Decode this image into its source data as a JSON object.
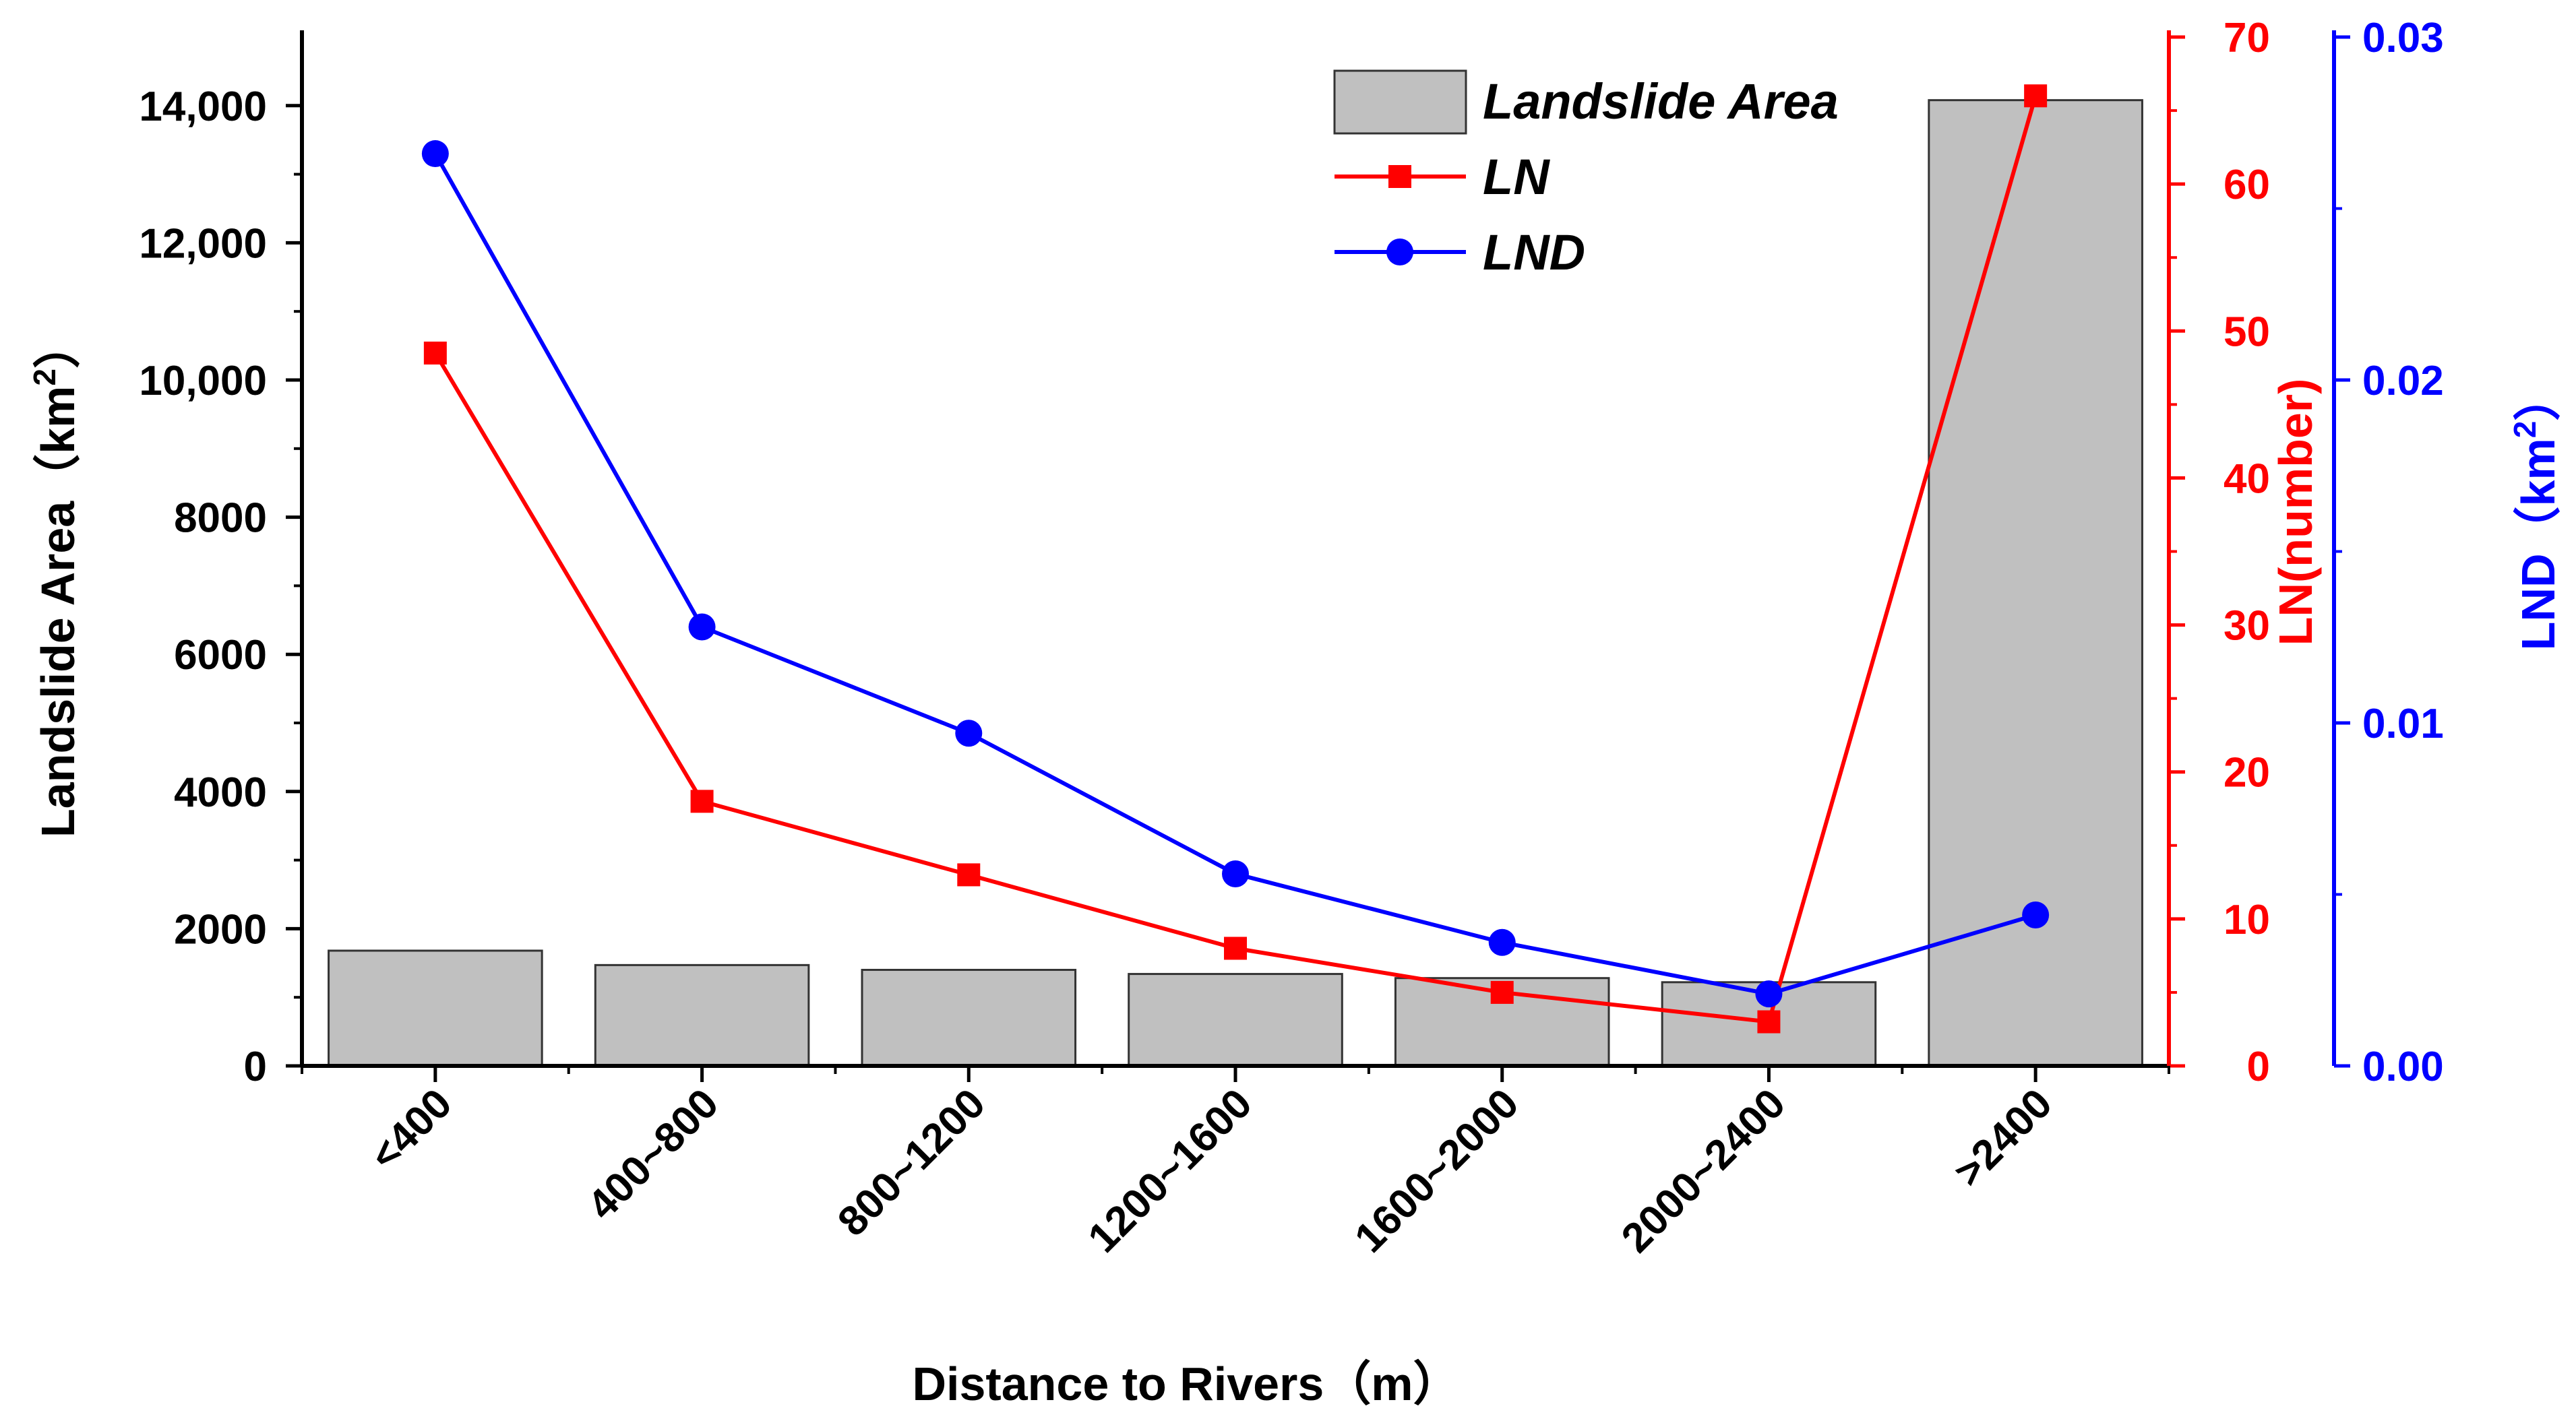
{
  "chart_data": {
    "type": "bar",
    "categories": [
      "<400",
      "400~800",
      "800~1200",
      "1200~1600",
      "1600~2000",
      "2000~2400",
      ">2400"
    ],
    "xlabel": "Distance to Rivers（m）",
    "series": [
      {
        "name": "Landslide Area",
        "kind": "bar",
        "axis": "left",
        "values": [
          1680,
          1470,
          1400,
          1340,
          1280,
          1220,
          14080
        ]
      },
      {
        "name": "LN",
        "kind": "line",
        "axis": "right1",
        "marker": "square",
        "values": [
          48.5,
          18,
          13,
          8,
          5,
          3,
          66
        ]
      },
      {
        "name": "LND",
        "kind": "line",
        "axis": "right2",
        "marker": "circle",
        "values": [
          0.0266,
          0.0128,
          0.0097,
          0.0056,
          0.0036,
          0.0021,
          0.0044
        ]
      }
    ],
    "axes": {
      "left": {
        "label_main": "Landslide Area（km",
        "label_sup": "2",
        "label_tail": "）",
        "ylim": [
          0,
          15000
        ],
        "ticks": [
          0,
          2000,
          4000,
          6000,
          8000,
          10000,
          12000,
          14000
        ],
        "tick_labels": [
          "0",
          "2000",
          "4000",
          "6000",
          "8000",
          "10,000",
          "12,000",
          "14,000"
        ],
        "color": "#000000"
      },
      "right1": {
        "label": "LN(number)",
        "ylim": [
          0,
          70
        ],
        "ticks": [
          0,
          10,
          20,
          30,
          40,
          50,
          60,
          70
        ],
        "tick_labels": [
          "0",
          "10",
          "20",
          "30",
          "40",
          "50",
          "60",
          "70"
        ],
        "color": "#ff0000"
      },
      "right2": {
        "label_main": "LND（km",
        "label_sup": "2",
        "label_tail": "）",
        "ylim": [
          0,
          0.03
        ],
        "ticks": [
          0,
          0.01,
          0.02,
          0.03
        ],
        "tick_labels": [
          "0.00",
          "0.01",
          "0.02",
          "0.03"
        ],
        "color": "#0000ff"
      }
    },
    "legend": {
      "position": "top-right",
      "entries": [
        "Landslide Area",
        "LN",
        "LND"
      ]
    },
    "colors": {
      "bar_fill": "#c0c0c0",
      "bar_stroke": "#333333",
      "ln": "#ff0000",
      "lnd": "#0000ff",
      "axis": "#000000"
    }
  }
}
